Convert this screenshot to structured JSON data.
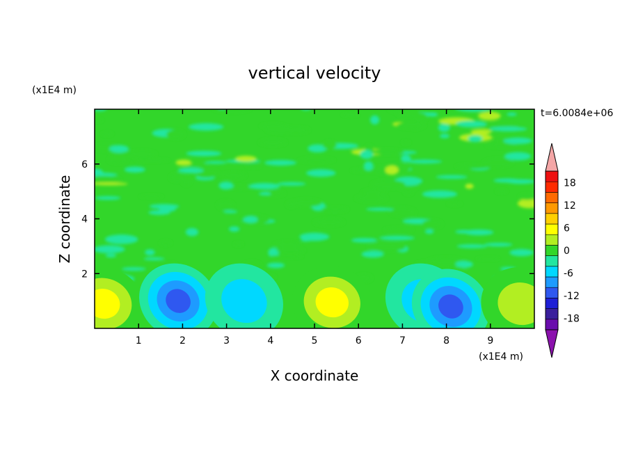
{
  "chart_data": {
    "type": "heatmap",
    "title": "vertical velocity",
    "xlabel": "X coordinate",
    "ylabel": "Z coordinate",
    "x_unit": "(x1E4 m)",
    "y_unit": "(x1E4 m)",
    "time_label": "t=6.0084e+06",
    "xlim": [
      0,
      10
    ],
    "ylim": [
      0,
      8
    ],
    "x_ticks": [
      1,
      2,
      3,
      4,
      5,
      6,
      7,
      8,
      9
    ],
    "y_ticks": [
      2,
      4,
      6
    ],
    "colorbar": {
      "levels": [
        -21,
        -18,
        -15,
        -12,
        -9,
        -6,
        -3,
        0,
        3,
        6,
        9,
        12,
        15,
        18,
        21
      ],
      "tick_labels": [
        "18",
        "12",
        "6",
        "0",
        "-6",
        "-12",
        "-18"
      ],
      "colors": [
        "#6a0dad",
        "#3a1f9c",
        "#1f1fd6",
        "#2f58f0",
        "#1e9bff",
        "#00d8ff",
        "#22e6a0",
        "#32d62a",
        "#b2ee22",
        "#ffff00",
        "#ffd000",
        "#ff9900",
        "#ff6a00",
        "#ff2b00",
        "#ee1111"
      ],
      "under_color": "#8b12ad",
      "over_color": "#f4a6a6"
    },
    "features": [
      {
        "x": 0.2,
        "z": 0.9,
        "value": 9
      },
      {
        "x": 1.9,
        "z": 1.0,
        "value": -12
      },
      {
        "x": 3.4,
        "z": 1.0,
        "value": -6
      },
      {
        "x": 5.4,
        "z": 0.95,
        "value": 9
      },
      {
        "x": 7.5,
        "z": 1.0,
        "value": -6
      },
      {
        "x": 8.1,
        "z": 0.8,
        "value": -12
      },
      {
        "x": 9.7,
        "z": 0.9,
        "value": 6
      }
    ]
  }
}
